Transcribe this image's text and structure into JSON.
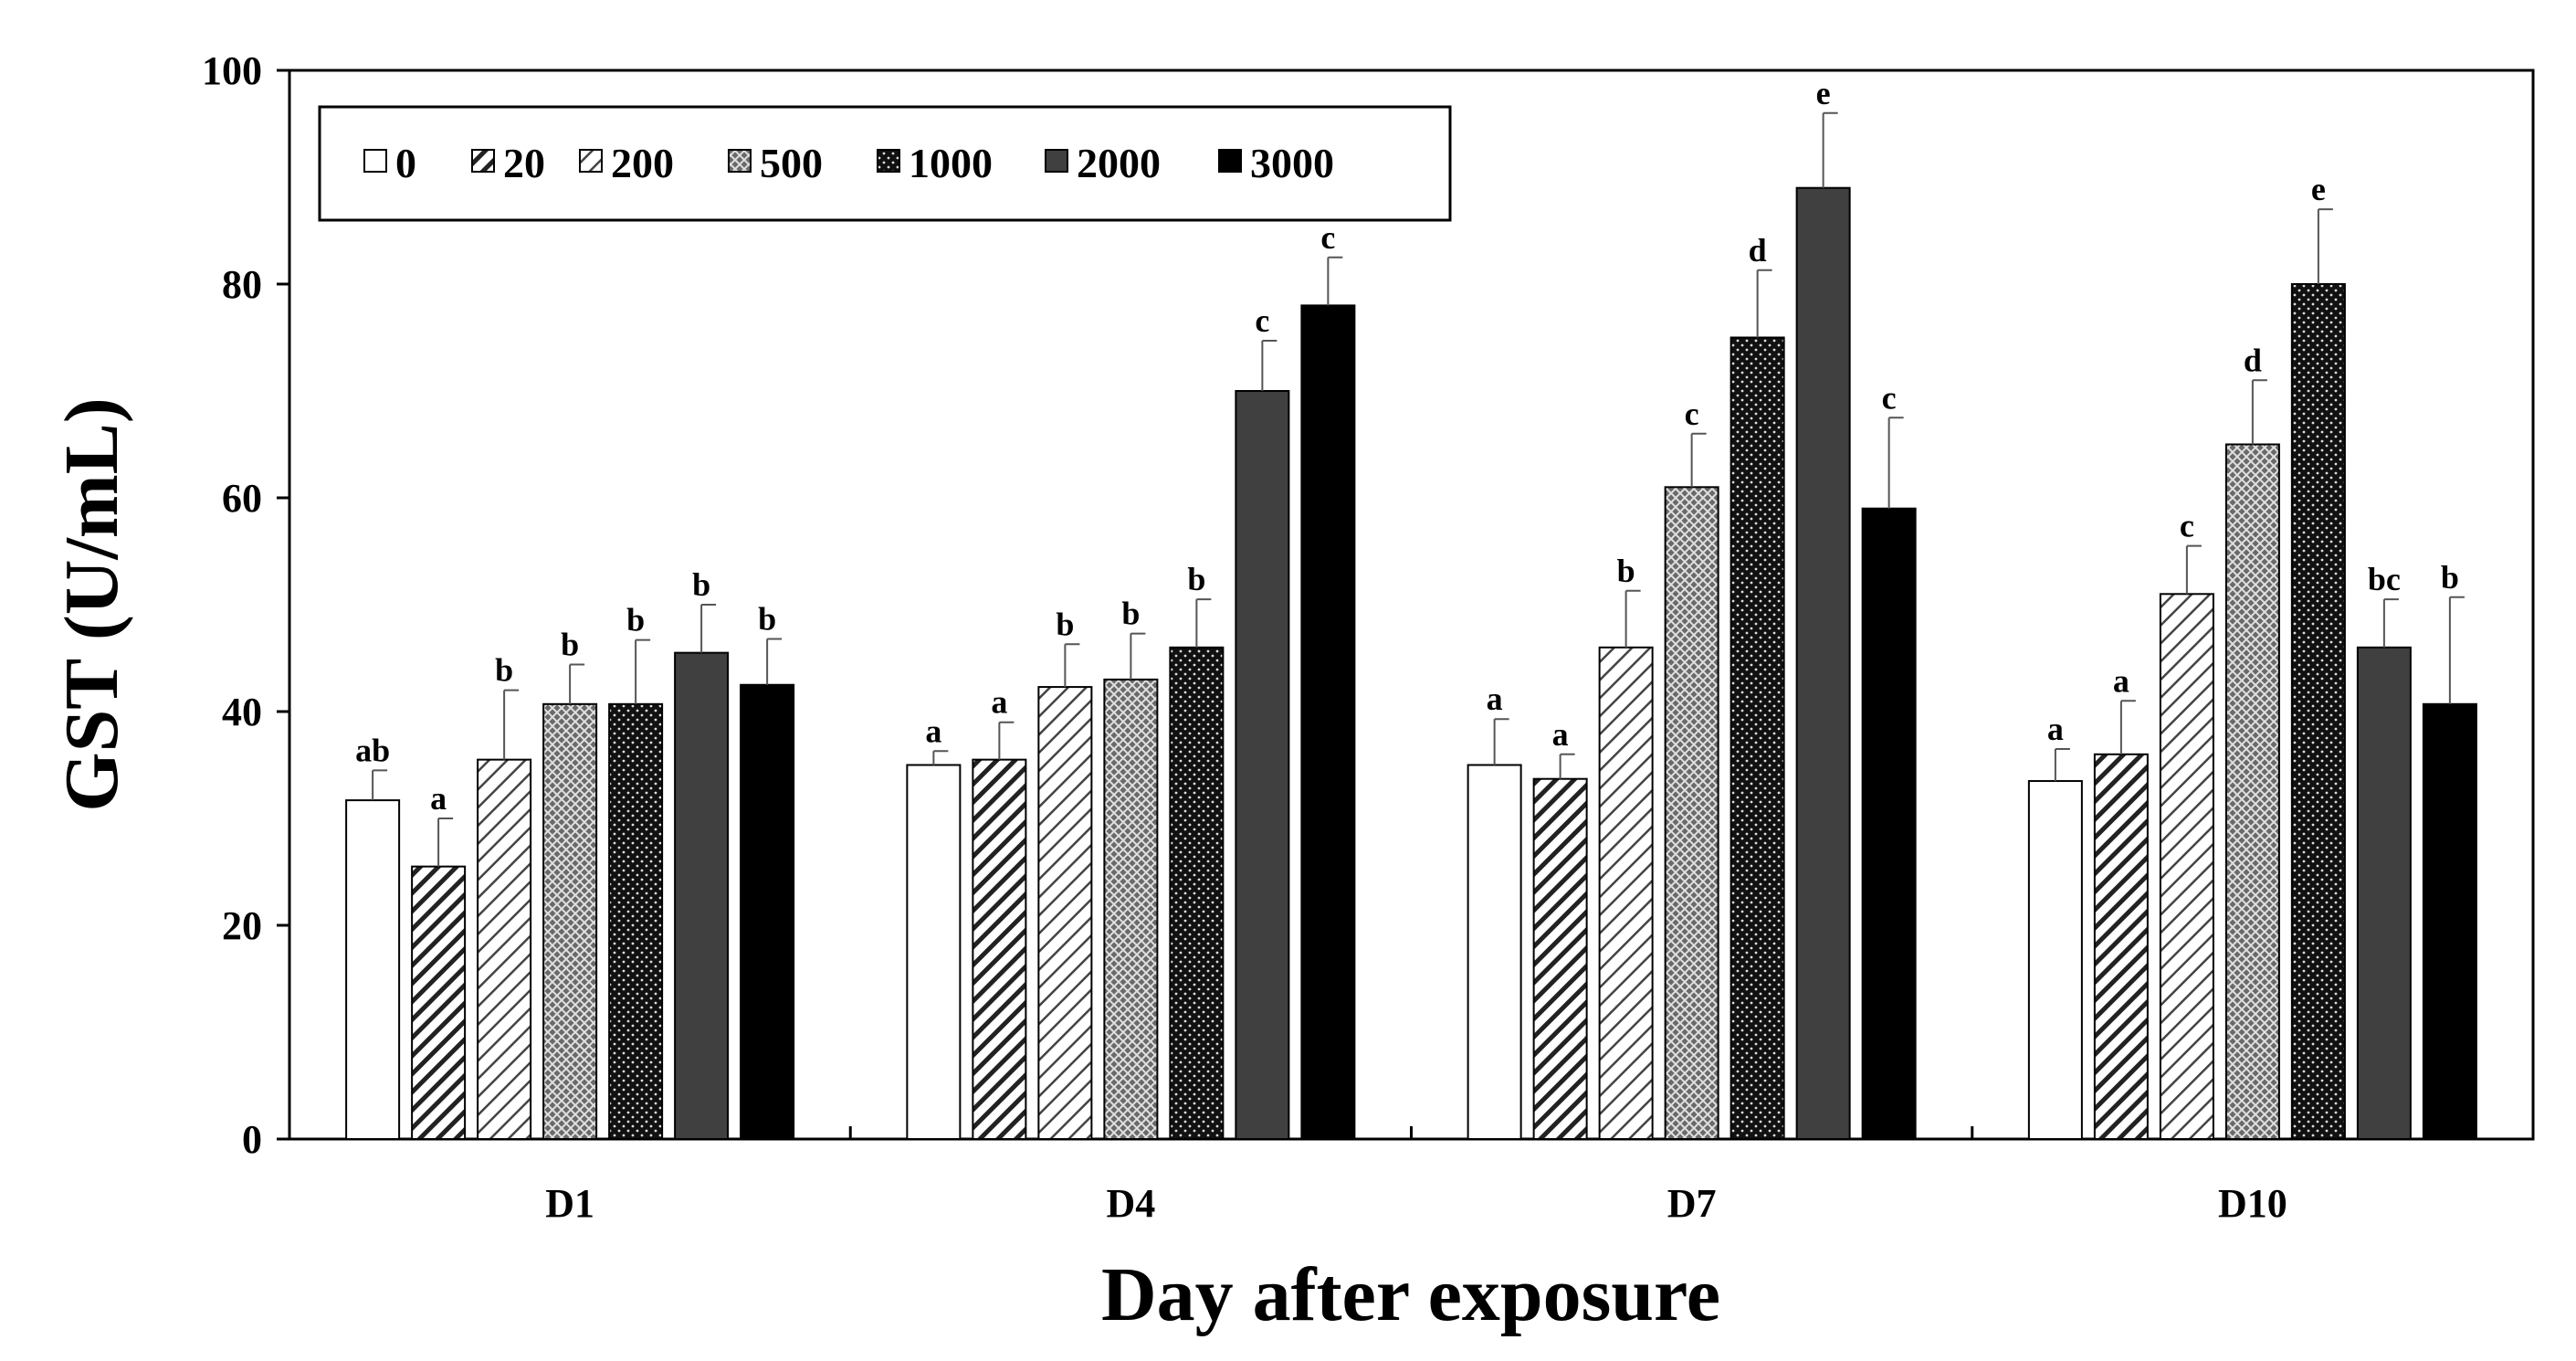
{
  "chart_data": {
    "type": "bar",
    "title": "",
    "xlabel": "Day after exposure",
    "ylabel": "GST (U/mL)",
    "ylim": [
      0,
      100
    ],
    "yticks": [
      0,
      20,
      40,
      60,
      80,
      100
    ],
    "categories": [
      "D1",
      "D4",
      "D7",
      "D10"
    ],
    "legend_position": "top-left",
    "series": [
      {
        "name": "0",
        "pattern": "white",
        "values": [
          31.7,
          35.0,
          35.0,
          33.5
        ],
        "errors": [
          2.8,
          1.3,
          4.3,
          3.0
        ],
        "labels": [
          "ab",
          "a",
          "a",
          "a"
        ]
      },
      {
        "name": "20",
        "pattern": "diagonal-hatch",
        "values": [
          25.5,
          35.5,
          33.7,
          36.0
        ],
        "errors": [
          4.5,
          3.5,
          2.3,
          5.0
        ],
        "labels": [
          "a",
          "a",
          "a",
          "a"
        ]
      },
      {
        "name": "200",
        "pattern": "light-hatch",
        "values": [
          35.5,
          42.3,
          46.0,
          51.0
        ],
        "errors": [
          6.5,
          4.0,
          5.3,
          4.5
        ],
        "labels": [
          "b",
          "b",
          "b",
          "c"
        ]
      },
      {
        "name": "500",
        "pattern": "crosshatch",
        "values": [
          40.7,
          43.0,
          61.0,
          65.0
        ],
        "errors": [
          3.7,
          4.3,
          5.0,
          6.0
        ],
        "labels": [
          "b",
          "b",
          "c",
          "d"
        ]
      },
      {
        "name": "1000",
        "pattern": "black-dots",
        "values": [
          40.7,
          46.0,
          75.0,
          80.0
        ],
        "errors": [
          6.0,
          4.5,
          6.3,
          7.0
        ],
        "labels": [
          "b",
          "b",
          "d",
          "e"
        ]
      },
      {
        "name": "2000",
        "pattern": "dark-gray",
        "values": [
          45.5,
          70.0,
          89.0,
          46.0
        ],
        "errors": [
          4.5,
          4.7,
          7.0,
          4.5
        ],
        "labels": [
          "b",
          "c",
          "e",
          "bc"
        ]
      },
      {
        "name": "3000",
        "pattern": "black",
        "values": [
          42.5,
          78.0,
          59.0,
          40.7
        ],
        "errors": [
          4.3,
          4.5,
          8.5,
          10.0
        ],
        "labels": [
          "b",
          "c",
          "c",
          "b"
        ]
      }
    ]
  }
}
